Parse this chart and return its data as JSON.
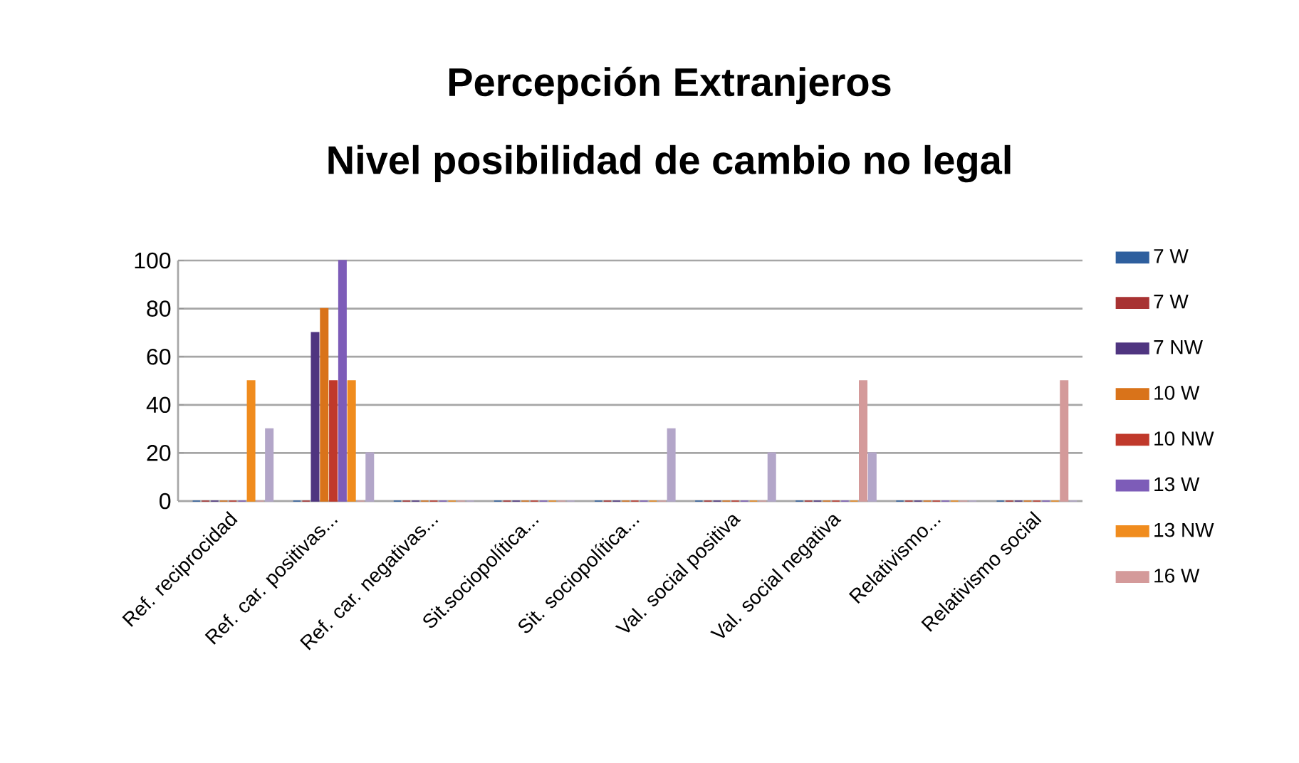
{
  "chart_data": {
    "type": "bar",
    "title": "Percepción Extranjeros",
    "subtitle": "Nivel posibilidad de cambio no  legal",
    "categories": [
      "Ref. reciprocidad",
      "Ref. car. positivas...",
      "Ref. car. negativas...",
      "Sit.sociopolítica...",
      "Sit. sociopolítica...",
      "Val. social positiva",
      "Val. social negativa",
      "Relativismo...",
      "Relativismo social"
    ],
    "series": [
      {
        "name": "7 W",
        "color": "#2e5f9e",
        "values": [
          0,
          0,
          0,
          0,
          0,
          0,
          0,
          0,
          0
        ]
      },
      {
        "name": "7 W",
        "color": "#a83232",
        "values": [
          0,
          0,
          0,
          0,
          0,
          0,
          0,
          0,
          0
        ]
      },
      {
        "name": "7 NW",
        "color": "#4f3580",
        "values": [
          0,
          70,
          0,
          0,
          0,
          0,
          0,
          0,
          0
        ]
      },
      {
        "name": "10 W",
        "color": "#d9731a",
        "values": [
          0,
          80,
          0,
          0,
          0,
          0,
          0,
          0,
          0
        ]
      },
      {
        "name": "10 NW",
        "color": "#c0392b",
        "values": [
          0,
          50,
          0,
          0,
          0,
          0,
          0,
          0,
          0
        ]
      },
      {
        "name": "13 W",
        "color": "#7d5cb8",
        "values": [
          0,
          100,
          0,
          0,
          0,
          0,
          0,
          0,
          0
        ]
      },
      {
        "name": "13 NW",
        "color": "#f08c1e",
        "values": [
          50,
          50,
          0,
          0,
          0,
          0,
          0,
          0,
          0
        ]
      },
      {
        "name": "16 W",
        "color": "#d49a9a",
        "values": [
          0,
          0,
          0,
          0,
          0,
          0,
          50,
          0,
          50
        ]
      },
      {
        "color": "#b3a6c9",
        "values": [
          30,
          20,
          0,
          0,
          30,
          20,
          20,
          0,
          0
        ]
      }
    ],
    "ylim": [
      0,
      100
    ],
    "yticks": [
      0,
      20,
      40,
      60,
      80,
      100
    ],
    "grid": "y",
    "legend": "right"
  }
}
